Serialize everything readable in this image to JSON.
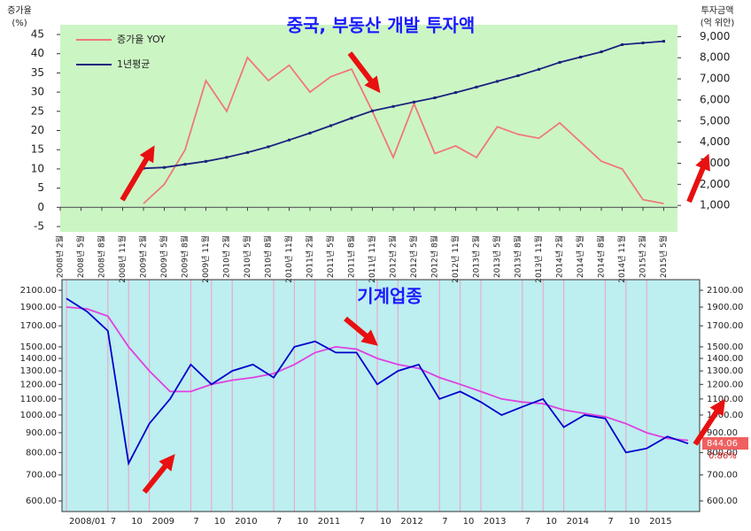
{
  "chart_data": [
    {
      "type": "line",
      "title": "중국, 부동산 개발 투자액",
      "y_label": [
        "증가율",
        "(%)"
      ],
      "y2_label": [
        "투자금액",
        "(억 위안)"
      ],
      "categories": [
        "2008년 2월",
        "2008년 5월",
        "2008년 8월",
        "2008년 11월",
        "2009년 2월",
        "2009년 5월",
        "2009년 8월",
        "2009년 11월",
        "2010년 2월",
        "2010년 5월",
        "2010년 8월",
        "2010년 11월",
        "2011년 2월",
        "2011년 5월",
        "2011년 8월",
        "2011년 11월",
        "2012년 2월",
        "2012년 5월",
        "2012년 8월",
        "2012년 11월",
        "2013년 2월",
        "2013년 5월",
        "2013년 8월",
        "2013년 11월",
        "2014년 2월",
        "2014년 5월",
        "2014년 8월",
        "2014년 11월",
        "2015년 2월",
        "2015년 5월"
      ],
      "series": [
        {
          "name": "증가율 YOY",
          "color": "#f07878",
          "values": [
            null,
            null,
            null,
            null,
            1,
            6,
            15,
            33,
            25,
            39,
            33,
            37,
            30,
            34,
            36,
            25,
            13,
            27,
            14,
            16,
            13,
            21,
            19,
            18,
            22,
            17,
            12,
            10,
            2,
            1
          ]
        },
        {
          "name": "1년평균",
          "color": "#1a237e",
          "axis": "y2",
          "values": [
            null,
            null,
            null,
            null,
            2760,
            2800,
            2950,
            3090,
            3280,
            3510,
            3780,
            4100,
            4430,
            4780,
            5140,
            5480,
            5690,
            5900,
            6100,
            6350,
            6610,
            6880,
            7150,
            7450,
            7780,
            8030,
            8280,
            8620,
            8700,
            8780
          ]
        }
      ],
      "ylim": [
        -5,
        45
      ],
      "yticks": [
        45,
        40,
        35,
        30,
        25,
        20,
        15,
        10,
        5,
        0,
        -5
      ],
      "y2lim": [
        0,
        9100
      ],
      "y2ticks": [
        {
          "value": 9000,
          "label": "9,000"
        },
        {
          "value": 8000,
          "label": "8,000"
        },
        {
          "value": 7000,
          "label": "7,000"
        },
        {
          "value": 6000,
          "label": "6,000"
        },
        {
          "value": 5000,
          "label": "5,000"
        },
        {
          "value": 4000,
          "label": "4,000"
        },
        {
          "value": 3000,
          "label": "3,000"
        },
        {
          "value": 2000,
          "label": "2,000"
        },
        {
          "value": 1000,
          "label": "1,000"
        }
      ],
      "legend": "upper left",
      "background": "#ccf5c4"
    },
    {
      "type": "line",
      "title": "기계업종",
      "categories": [
        "2008/01",
        null,
        "7",
        "10",
        "2009",
        null,
        "7",
        "10",
        "2010",
        null,
        "7",
        "10",
        "2011",
        null,
        "7",
        "10",
        "2012",
        null,
        "7",
        "10",
        "2013",
        null,
        "7",
        "10",
        "2014",
        null,
        "7",
        "10",
        "2015",
        null,
        null
      ],
      "series": [
        {
          "color": "#0000cc",
          "values": [
            2000,
            1850,
            1650,
            750,
            950,
            1100,
            1350,
            1200,
            1300,
            1350,
            1250,
            1500,
            1550,
            1450,
            1450,
            1200,
            1300,
            1350,
            1100,
            1150,
            1080,
            1000,
            1050,
            1100,
            930,
            1000,
            980,
            800,
            820,
            880,
            844.06
          ]
        },
        {
          "color": "#e040e0",
          "values": [
            1900,
            1880,
            1800,
            1500,
            1300,
            1150,
            1150,
            1200,
            1230,
            1250,
            1280,
            1350,
            1450,
            1500,
            1480,
            1400,
            1350,
            1320,
            1250,
            1200,
            1150,
            1100,
            1080,
            1070,
            1030,
            1010,
            990,
            950,
            900,
            870,
            860
          ]
        }
      ],
      "ylim": [
        600,
        2100
      ],
      "log_scale": true,
      "yticks": [
        {
          "value": 2100,
          "label": "2100.00"
        },
        {
          "value": 1900,
          "label": "1900.00"
        },
        {
          "value": 1700,
          "label": "1700.00"
        },
        {
          "value": 1500,
          "label": "1500.00"
        },
        {
          "value": 1400,
          "label": "1400.00"
        },
        {
          "value": 1300,
          "label": "1300.00"
        },
        {
          "value": 1200,
          "label": "1200.00"
        },
        {
          "value": 1100,
          "label": "1100.00"
        },
        {
          "value": 1000,
          "label": "1000.00"
        },
        {
          "value": 900,
          "label": "900.00"
        },
        {
          "value": 800,
          "label": "800.00"
        },
        {
          "value": 700,
          "label": "700.00"
        },
        {
          "value": 600,
          "label": "600.00"
        }
      ],
      "annotations": [
        "0.86%"
      ],
      "vertical_grid": true,
      "background": "#bdeef0"
    }
  ]
}
